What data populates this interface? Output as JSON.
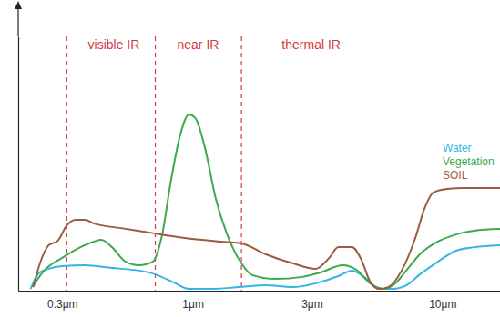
{
  "chart_data": {
    "type": "line",
    "log": "x",
    "xlim": [
      0.2,
      17
    ],
    "ylim": [
      0,
      100
    ],
    "xticks": [
      {
        "value": 0.3,
        "label": "0.3μm"
      },
      {
        "value": 1,
        "label": "1μm"
      },
      {
        "value": 3,
        "label": "3μm"
      },
      {
        "value": 10,
        "label": "10μm"
      }
    ],
    "tick_labels": "x",
    "grid": false,
    "legend": "right",
    "vlines": [
      0.313,
      0.708,
      1.567
    ],
    "annotations": [
      {
        "text": "visible IR",
        "x": 0.483,
        "y": 95
      },
      {
        "text": "near IR",
        "x": 1.05,
        "y": 95
      },
      {
        "text": "thermal IR",
        "x": 2.98,
        "y": 95
      }
    ],
    "series": [
      {
        "name": "Water",
        "color": "#33b5e5",
        "x": [
          0.224,
          0.243,
          0.265,
          0.3,
          0.37,
          0.475,
          0.61,
          0.709,
          0.852,
          0.966,
          1.19,
          1.528,
          1.963,
          2.522,
          3.107,
          3.828,
          4.34,
          4.919,
          5.573,
          6.318,
          7.161,
          8.118,
          9.591,
          11.33,
          13.4,
          17
        ],
        "values": [
          0.7,
          7.1,
          8.6,
          9.6,
          10,
          8.9,
          7.9,
          6.4,
          2.9,
          0.7,
          0.7,
          1.4,
          2.1,
          1.4,
          2.9,
          5.7,
          7.9,
          5,
          0.7,
          0.7,
          2.1,
          6.4,
          11.4,
          15.7,
          17.1,
          17.9
        ]
      },
      {
        "name": "Vegetation",
        "color": "#3aaa4b",
        "x": [
          0.228,
          0.254,
          0.3,
          0.355,
          0.402,
          0.43,
          0.475,
          0.538,
          0.61,
          0.691,
          0.752,
          0.817,
          0.888,
          0.966,
          1.024,
          1.113,
          1.24,
          1.406,
          1.567,
          1.731,
          2.135,
          2.742,
          3.24,
          3.991,
          4.525,
          5.129,
          5.813,
          6.588,
          7.161,
          8.118,
          9.591,
          11.33,
          13.4,
          17
        ],
        "values": [
          1.4,
          7.9,
          12.9,
          17.1,
          19.3,
          20,
          17.1,
          11.4,
          10,
          11.4,
          21.4,
          42.9,
          60.7,
          69.3,
          67.9,
          57.1,
          35.7,
          19.6,
          10.7,
          6.1,
          4.6,
          5.4,
          7.1,
          10,
          8.2,
          2.9,
          0.7,
          3.6,
          7.9,
          14.3,
          19.3,
          22.1,
          23.6,
          24.3
        ]
      },
      {
        "name": "SOIL",
        "color": "#9c5b3f",
        "x": [
          0.23,
          0.243,
          0.265,
          0.288,
          0.313,
          0.34,
          0.37,
          0.402,
          0.516,
          0.663,
          0.926,
          1.293,
          1.567,
          1.963,
          2.522,
          3.107,
          3.522,
          3.828,
          4.34,
          4.718,
          5.129,
          5.573,
          6.061,
          6.868,
          7.785,
          8.462,
          9.2,
          10.43,
          12.32,
          17
        ],
        "values": [
          1.4,
          10,
          17.9,
          19.6,
          25.7,
          27.9,
          27.9,
          26.4,
          24.6,
          22.9,
          20.7,
          19.3,
          18.6,
          14.3,
          10.7,
          8.6,
          12.9,
          17.1,
          17.1,
          12.5,
          3.6,
          0.7,
          1.4,
          7.9,
          20.7,
          32.1,
          38.6,
          40,
          40.4,
          40.4
        ]
      }
    ]
  }
}
